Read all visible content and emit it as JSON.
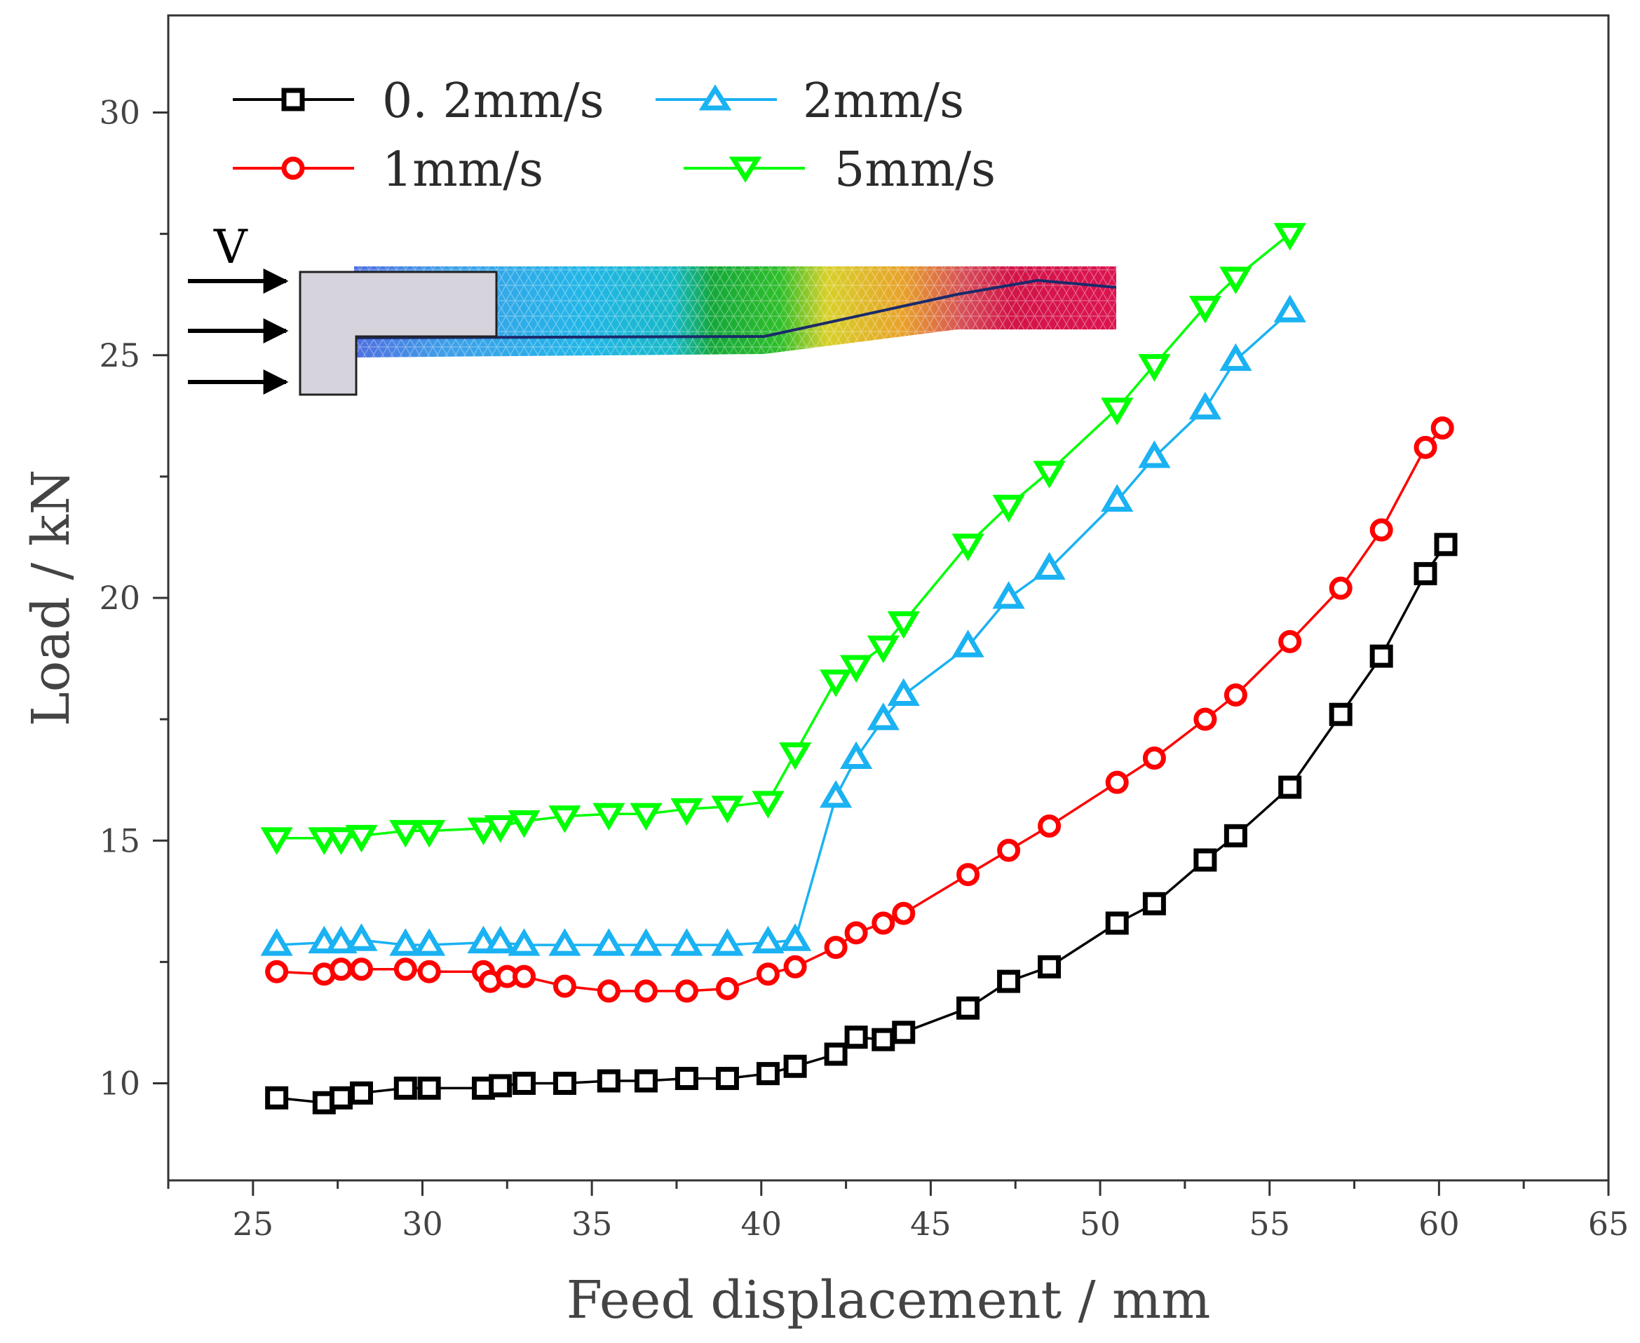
{
  "chart_data": {
    "type": "line",
    "title": "",
    "xlabel": "Feed displacement / mm",
    "ylabel": "Load / kN",
    "xlim": [
      22.5,
      65
    ],
    "ylim": [
      8,
      32
    ],
    "x_ticks": [
      25,
      30,
      35,
      40,
      45,
      50,
      55,
      60,
      65
    ],
    "x_tick_labels": [
      "25",
      "30",
      "35",
      "40",
      "45",
      "50",
      "55",
      "60",
      "65"
    ],
    "y_ticks": [
      10,
      15,
      20,
      25,
      30
    ],
    "y_tick_labels": [
      "10",
      "15",
      "20",
      "25",
      "30"
    ],
    "grid": false,
    "legend_position": "top-left",
    "series": [
      {
        "name": "0. 2mm/s",
        "color": "#000000",
        "marker": "square",
        "x": [
          25.7,
          27.1,
          27.6,
          28.2,
          29.5,
          30.2,
          31.8,
          32.3,
          33.0,
          34.2,
          35.5,
          36.6,
          37.8,
          39.0,
          40.2,
          41.0,
          42.2,
          42.8,
          43.6,
          44.2,
          46.1,
          47.3,
          48.5,
          50.5,
          51.6,
          53.1,
          54.0,
          55.6,
          57.1,
          58.3,
          59.6,
          60.2
        ],
        "y": [
          9.7,
          9.6,
          9.7,
          9.8,
          9.9,
          9.9,
          9.9,
          9.95,
          10.0,
          10.0,
          10.05,
          10.05,
          10.1,
          10.1,
          10.2,
          10.35,
          10.6,
          10.95,
          10.9,
          11.05,
          11.55,
          12.1,
          12.4,
          13.3,
          13.7,
          14.6,
          15.1,
          16.1,
          17.6,
          18.8,
          20.5,
          21.1
        ]
      },
      {
        "name": "1mm/s",
        "color": "#ff0000",
        "marker": "circle",
        "x": [
          25.7,
          27.1,
          27.6,
          28.2,
          29.5,
          30.2,
          31.8,
          32.0,
          32.5,
          33.0,
          34.2,
          35.5,
          36.6,
          37.8,
          39.0,
          40.2,
          41.0,
          42.2,
          42.8,
          43.6,
          44.2,
          46.1,
          47.3,
          48.5,
          50.5,
          51.6,
          53.1,
          54.0,
          55.6,
          57.1,
          58.3,
          59.6,
          60.1
        ],
        "y": [
          12.3,
          12.25,
          12.35,
          12.35,
          12.35,
          12.3,
          12.3,
          12.1,
          12.2,
          12.2,
          12.0,
          11.9,
          11.9,
          11.9,
          11.95,
          12.25,
          12.4,
          12.8,
          13.1,
          13.3,
          13.5,
          14.3,
          14.8,
          15.3,
          16.2,
          16.7,
          17.5,
          18.0,
          19.1,
          20.2,
          21.4,
          23.1,
          23.5
        ]
      },
      {
        "name": "2mm/s",
        "color": "#1ab2f2",
        "marker": "triangle-up",
        "x": [
          25.7,
          27.1,
          27.6,
          28.2,
          29.5,
          30.2,
          31.8,
          32.3,
          33.0,
          34.2,
          35.5,
          36.6,
          37.8,
          39.0,
          40.2,
          41.0,
          42.2,
          42.8,
          43.6,
          44.2,
          46.1,
          47.3,
          48.5,
          50.5,
          51.6,
          53.1,
          54.0,
          55.6
        ],
        "y": [
          12.85,
          12.9,
          12.9,
          12.95,
          12.85,
          12.85,
          12.9,
          12.9,
          12.85,
          12.85,
          12.85,
          12.85,
          12.85,
          12.85,
          12.9,
          12.95,
          15.9,
          16.7,
          17.5,
          18.0,
          19.0,
          20.0,
          20.6,
          22.0,
          22.9,
          23.9,
          24.9,
          25.9
        ]
      },
      {
        "name": "5mm/s",
        "color": "#00ff00",
        "marker": "triangle-down",
        "x": [
          25.7,
          27.1,
          27.6,
          28.2,
          29.5,
          30.2,
          31.8,
          32.3,
          33.0,
          34.2,
          35.5,
          36.6,
          37.8,
          39.0,
          40.2,
          41.0,
          42.2,
          42.8,
          43.6,
          44.2,
          46.1,
          47.3,
          48.5,
          50.5,
          51.6,
          53.1,
          54.0,
          55.6
        ],
        "y": [
          15.05,
          15.05,
          15.05,
          15.1,
          15.2,
          15.2,
          15.25,
          15.3,
          15.4,
          15.5,
          15.55,
          15.55,
          15.65,
          15.7,
          15.8,
          16.8,
          18.3,
          18.6,
          19.0,
          19.5,
          21.1,
          21.9,
          22.6,
          23.9,
          24.8,
          26.0,
          26.6,
          27.5
        ]
      }
    ],
    "inset": {
      "label": "V"
    }
  }
}
